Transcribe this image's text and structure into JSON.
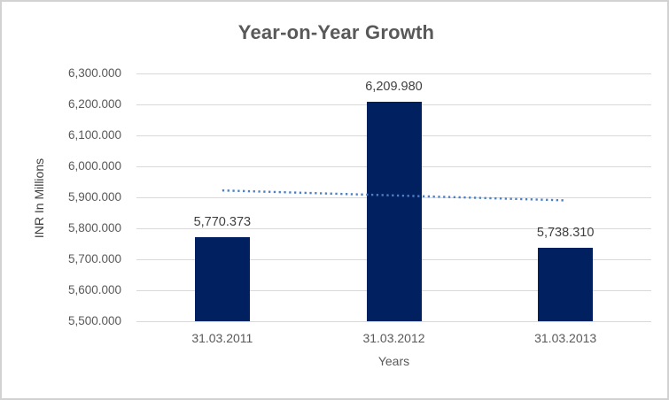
{
  "chart_data": {
    "type": "bar",
    "title": "Year-on-Year Growth",
    "xlabel": "Years",
    "ylabel": "INR In Millions",
    "categories": [
      "31.03.2011",
      "31.03.2012",
      "31.03.2013"
    ],
    "values": [
      5770.373,
      6209.98,
      5738.31
    ],
    "value_labels": [
      "5,770.373",
      "6,209.980",
      "5,738.310"
    ],
    "ylim": [
      5500,
      6300
    ],
    "ytick_step": 100,
    "ytick_labels": [
      "6,300.000",
      "6,200.000",
      "6,100.000",
      "6,000.000",
      "5,900.000",
      "5,800.000",
      "5,700.000",
      "5,600.000",
      "5,500.000"
    ],
    "grid": true,
    "legend": false,
    "trendline": {
      "type": "linear",
      "style": "dotted"
    },
    "colors": {
      "bar": "#002060",
      "trendline": "#4C7FC4",
      "gridline": "#D9D9D9",
      "axis_line": "#D9D9D9",
      "title": "#595959",
      "tick_label": "#595959",
      "axis_title": "#404040",
      "data_label": "#404040",
      "border": "#D2D2D2",
      "background": "#FFFFFF"
    }
  }
}
